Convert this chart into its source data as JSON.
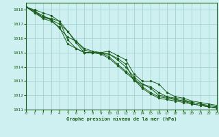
{
  "title": "Graphe pression niveau de la mer (hPa)",
  "xlim": [
    0,
    23
  ],
  "ylim": [
    1011,
    1018.5
  ],
  "yticks": [
    1011,
    1012,
    1013,
    1014,
    1015,
    1016,
    1017,
    1018
  ],
  "xticks": [
    0,
    1,
    2,
    3,
    4,
    5,
    6,
    7,
    8,
    9,
    10,
    11,
    12,
    13,
    14,
    15,
    16,
    17,
    18,
    19,
    20,
    21,
    22,
    23
  ],
  "bg_color": "#cff0f0",
  "grid_color": "#99cccc",
  "line_color": "#1a5c1a",
  "series": [
    [
      1018.2,
      1017.8,
      1017.5,
      1017.4,
      1017.2,
      1016.5,
      1015.7,
      1015.0,
      1015.0,
      1015.0,
      1015.1,
      1014.8,
      1014.5,
      1013.5,
      1013.0,
      1013.0,
      1012.8,
      1012.2,
      1011.9,
      1011.8,
      1011.6,
      1011.5,
      1011.4,
      1011.3
    ],
    [
      1018.2,
      1017.8,
      1017.4,
      1017.2,
      1016.8,
      1015.6,
      1015.3,
      1015.0,
      1015.0,
      1015.0,
      1014.9,
      1014.5,
      1014.0,
      1013.3,
      1012.8,
      1012.5,
      1012.0,
      1011.9,
      1011.8,
      1011.7,
      1011.5,
      1011.4,
      1011.2,
      1011.1
    ],
    [
      1018.2,
      1017.9,
      1017.5,
      1017.3,
      1016.7,
      1016.1,
      1015.8,
      1015.3,
      1015.1,
      1015.0,
      1014.7,
      1014.2,
      1013.7,
      1013.2,
      1012.6,
      1012.2,
      1011.9,
      1011.8,
      1011.7,
      1011.6,
      1011.5,
      1011.4,
      1011.3,
      1011.2
    ],
    [
      1018.2,
      1017.9,
      1017.6,
      1017.3,
      1017.0,
      1016.5,
      1015.8,
      1015.2,
      1015.0,
      1014.9,
      1014.6,
      1014.1,
      1013.6,
      1013.1,
      1012.5,
      1012.1,
      1011.8,
      1011.7,
      1011.6,
      1011.5,
      1011.4,
      1011.3,
      1011.2,
      1011.15
    ],
    [
      1018.2,
      1018.0,
      1017.8,
      1017.6,
      1017.2,
      1015.9,
      1015.3,
      1015.0,
      1015.0,
      1014.9,
      1014.9,
      1014.6,
      1014.2,
      1013.0,
      1012.8,
      1012.6,
      1012.2,
      1011.9,
      1011.7,
      1011.6,
      1011.4,
      1011.3,
      1011.2,
      1011.1
    ]
  ]
}
